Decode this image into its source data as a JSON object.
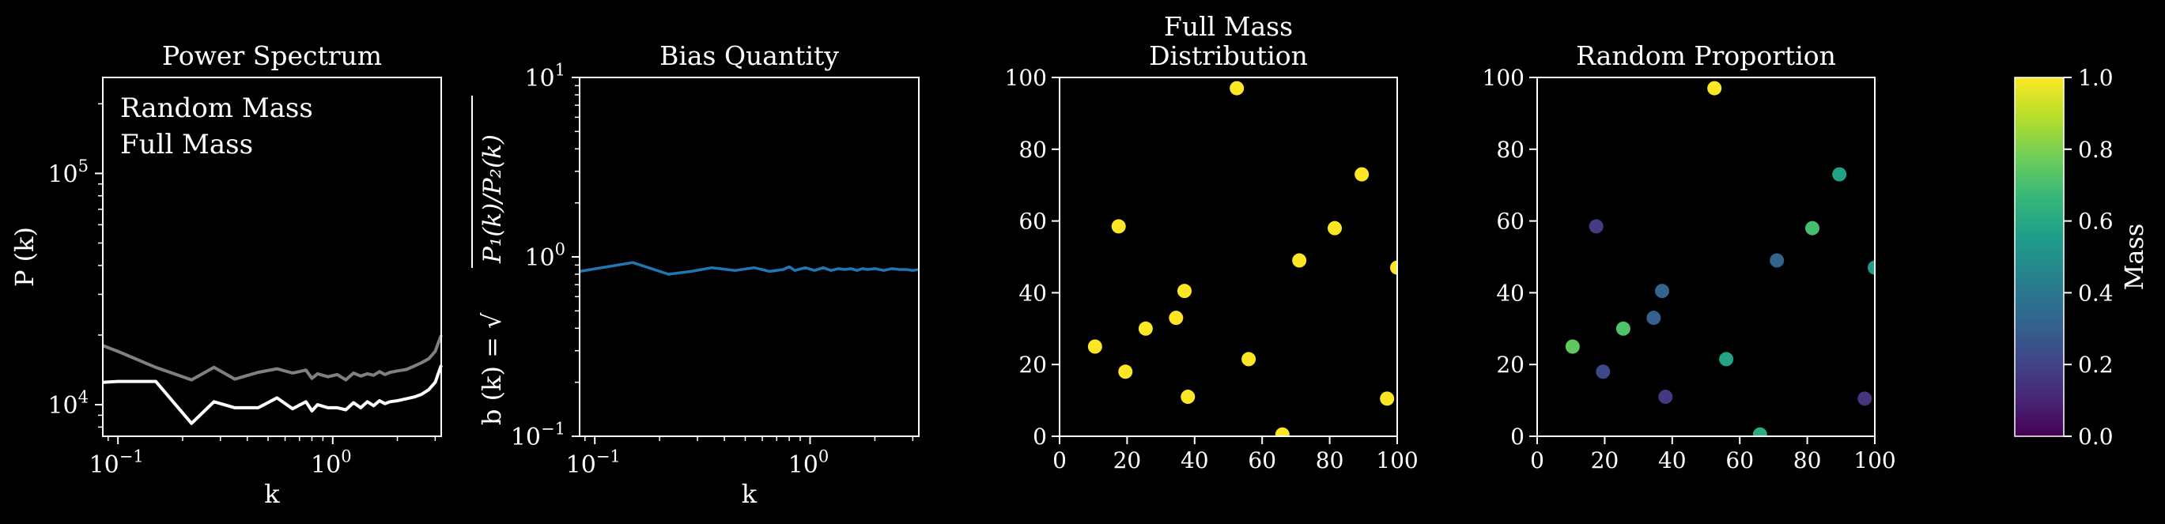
{
  "chart_data": [
    {
      "type": "line",
      "title": "Power Spectrum",
      "xlabel": "k",
      "ylabel": "P (k)",
      "x_scale": "log",
      "y_scale": "log",
      "xlim": [
        0.085,
        3.2
      ],
      "ylim": [
        7300,
        260000
      ],
      "x_ticks": [
        {
          "v": 0.1,
          "label": "10",
          "exp": "−1"
        },
        {
          "v": 1,
          "label": "10",
          "exp": "0"
        }
      ],
      "y_ticks": [
        {
          "v": 10000,
          "label": "10",
          "exp": "4"
        },
        {
          "v": 100000,
          "label": "10",
          "exp": "5"
        }
      ],
      "legend_position": "top-left",
      "series": [
        {
          "name": "Random Mass",
          "color": "#808080",
          "x": [
            0.085,
            0.1,
            0.15,
            0.22,
            0.28,
            0.35,
            0.45,
            0.55,
            0.65,
            0.75,
            0.8,
            0.85,
            0.95,
            1.05,
            1.15,
            1.25,
            1.35,
            1.45,
            1.55,
            1.65,
            1.75,
            1.85,
            2.0,
            2.2,
            2.4,
            2.6,
            2.8,
            3.0,
            3.2
          ],
          "y": [
            18000,
            17000,
            14500,
            12800,
            14500,
            12900,
            13800,
            14300,
            13700,
            14100,
            13000,
            13600,
            13200,
            13500,
            12800,
            13700,
            13300,
            13600,
            13400,
            13900,
            13500,
            13800,
            14000,
            14200,
            14700,
            15200,
            15800,
            17000,
            20000
          ]
        },
        {
          "name": "Full Mass",
          "color": "#ffffff",
          "x": [
            0.085,
            0.1,
            0.15,
            0.22,
            0.28,
            0.35,
            0.45,
            0.55,
            0.65,
            0.75,
            0.8,
            0.85,
            0.95,
            1.05,
            1.15,
            1.25,
            1.35,
            1.45,
            1.55,
            1.65,
            1.75,
            1.85,
            2.0,
            2.2,
            2.4,
            2.6,
            2.8,
            3.0,
            3.2
          ],
          "y": [
            12500,
            12600,
            12600,
            8300,
            10300,
            9700,
            9700,
            10700,
            9600,
            10300,
            9400,
            10000,
            9700,
            9700,
            9500,
            10200,
            9700,
            10300,
            9900,
            10400,
            10100,
            10300,
            10400,
            10600,
            10800,
            11100,
            11600,
            12500,
            14800
          ]
        }
      ]
    },
    {
      "type": "line",
      "title": "Bias Quantity",
      "xlabel": "k",
      "ylabel": "b (k) = √",
      "ylabel_radicand": "P₁(k)/P₂(k)",
      "x_scale": "log",
      "y_scale": "log",
      "xlim": [
        0.085,
        3.2
      ],
      "ylim": [
        0.1,
        10
      ],
      "x_ticks": [
        {
          "v": 0.1,
          "label": "10",
          "exp": "−1"
        },
        {
          "v": 1,
          "label": "10",
          "exp": "0"
        }
      ],
      "y_ticks": [
        {
          "v": 0.1,
          "label": "10",
          "exp": "−1"
        },
        {
          "v": 1,
          "label": "10",
          "exp": "0"
        },
        {
          "v": 10,
          "label": "10",
          "exp": "1"
        }
      ],
      "series": [
        {
          "color": "#1f77b4",
          "x": [
            0.085,
            0.15,
            0.22,
            0.28,
            0.35,
            0.45,
            0.55,
            0.65,
            0.75,
            0.8,
            0.85,
            0.95,
            1.05,
            1.15,
            1.25,
            1.35,
            1.45,
            1.55,
            1.65,
            1.75,
            1.85,
            2.0,
            2.2,
            2.4,
            2.6,
            2.8,
            3.0,
            3.2
          ],
          "y": [
            0.83,
            0.93,
            0.8,
            0.83,
            0.87,
            0.84,
            0.87,
            0.83,
            0.85,
            0.88,
            0.84,
            0.87,
            0.84,
            0.87,
            0.84,
            0.86,
            0.85,
            0.86,
            0.84,
            0.86,
            0.85,
            0.86,
            0.84,
            0.86,
            0.85,
            0.85,
            0.84,
            0.85
          ]
        }
      ]
    },
    {
      "type": "scatter",
      "title": "Full Mass",
      "title_line2": "Distribution",
      "xlim": [
        0,
        100
      ],
      "ylim": [
        0,
        100
      ],
      "x_ticks": [
        0,
        20,
        40,
        60,
        80,
        100
      ],
      "y_ticks": [
        0,
        20,
        40,
        60,
        80,
        100
      ],
      "color_by_mass": true,
      "points": [
        {
          "x": 10.5,
          "y": 25,
          "m": 1.0
        },
        {
          "x": 17.5,
          "y": 58.5,
          "m": 1.0
        },
        {
          "x": 19.5,
          "y": 18,
          "m": 1.0
        },
        {
          "x": 25.5,
          "y": 30,
          "m": 1.0
        },
        {
          "x": 34.5,
          "y": 33,
          "m": 1.0
        },
        {
          "x": 37,
          "y": 40.5,
          "m": 1.0
        },
        {
          "x": 38,
          "y": 11,
          "m": 1.0
        },
        {
          "x": 52.5,
          "y": 97,
          "m": 1.0
        },
        {
          "x": 56,
          "y": 21.5,
          "m": 1.0
        },
        {
          "x": 66,
          "y": 0.5,
          "m": 1.0
        },
        {
          "x": 71,
          "y": 49,
          "m": 1.0
        },
        {
          "x": 81.5,
          "y": 58,
          "m": 1.0
        },
        {
          "x": 89.5,
          "y": 73,
          "m": 1.0
        },
        {
          "x": 97,
          "y": 10.5,
          "m": 1.0
        },
        {
          "x": 100,
          "y": 47,
          "m": 1.0
        }
      ]
    },
    {
      "type": "scatter",
      "title": "Random Proportion",
      "xlim": [
        0,
        100
      ],
      "ylim": [
        0,
        100
      ],
      "x_ticks": [
        0,
        20,
        40,
        60,
        80,
        100
      ],
      "y_ticks": [
        0,
        20,
        40,
        60,
        80,
        100
      ],
      "color_by_mass": true,
      "points": [
        {
          "x": 10.5,
          "y": 25,
          "m": 0.75
        },
        {
          "x": 17.5,
          "y": 58.5,
          "m": 0.18
        },
        {
          "x": 19.5,
          "y": 18,
          "m": 0.22
        },
        {
          "x": 25.5,
          "y": 30,
          "m": 0.72
        },
        {
          "x": 34.5,
          "y": 33,
          "m": 0.3
        },
        {
          "x": 37,
          "y": 40.5,
          "m": 0.32
        },
        {
          "x": 38,
          "y": 11,
          "m": 0.17
        },
        {
          "x": 52.5,
          "y": 97,
          "m": 1.0
        },
        {
          "x": 56,
          "y": 21.5,
          "m": 0.58
        },
        {
          "x": 66,
          "y": 0.5,
          "m": 0.62
        },
        {
          "x": 71,
          "y": 49,
          "m": 0.32
        },
        {
          "x": 81.5,
          "y": 58,
          "m": 0.7
        },
        {
          "x": 89.5,
          "y": 73,
          "m": 0.57
        },
        {
          "x": 97,
          "y": 10.5,
          "m": 0.15
        },
        {
          "x": 100,
          "y": 47,
          "m": 0.55
        }
      ]
    }
  ],
  "colorbar": {
    "label": "Mass",
    "min": 0,
    "max": 1,
    "ticks": [
      "0.0",
      "0.2",
      "0.4",
      "0.6",
      "0.8",
      "1.0"
    ],
    "colormap": "viridis",
    "stops": [
      "#440154",
      "#482878",
      "#3e4989",
      "#31688e",
      "#26828e",
      "#1f9e89",
      "#35b779",
      "#6ece58",
      "#b5de2b",
      "#fde725"
    ]
  }
}
